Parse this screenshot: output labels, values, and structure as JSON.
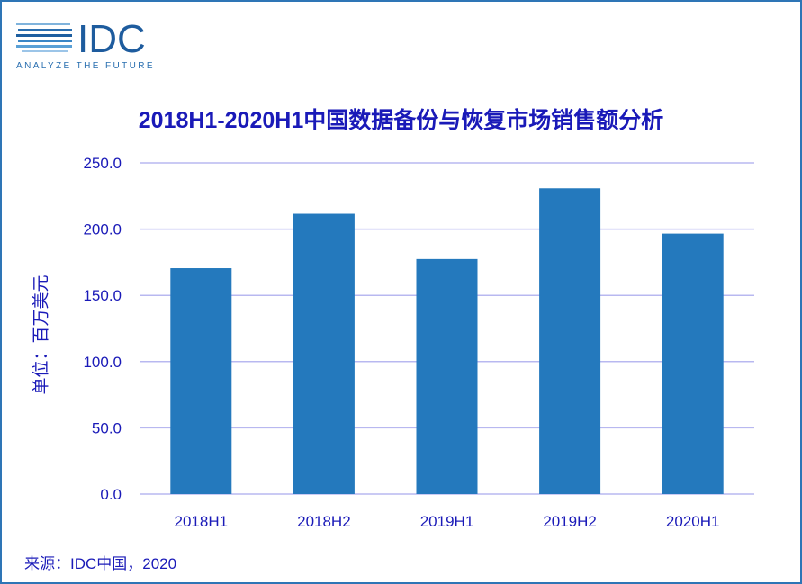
{
  "logo": {
    "text": "IDC",
    "tagline": "ANALYZE THE FUTURE"
  },
  "chart_data": {
    "type": "bar",
    "title": "2018H1-2020H1中国数据备份与恢复市场销售额分析",
    "ylabel": "单位：百万美元",
    "xlabel": "",
    "categories": [
      "2018H1",
      "2018H2",
      "2019H1",
      "2019H2",
      "2020H1"
    ],
    "values": [
      170.5,
      211.6,
      177.4,
      230.8,
      196.6
    ],
    "ylim": [
      0,
      250
    ],
    "yticks": [
      "0.0",
      "50.0",
      "100.0",
      "150.0",
      "200.0",
      "250.0"
    ],
    "grid": true,
    "colors": {
      "bar": "#2479bd",
      "grid": "#b8b8f0",
      "text": "#1a1ab8"
    }
  },
  "source": "来源：IDC中国，2020"
}
